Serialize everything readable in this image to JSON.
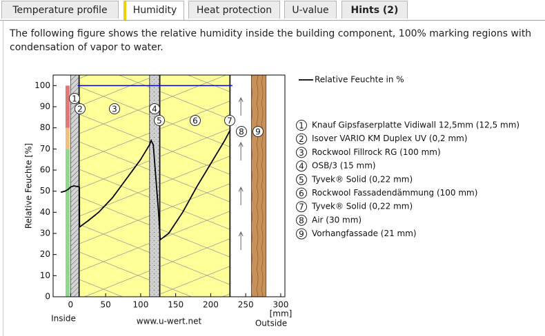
{
  "tabs": [
    {
      "label": "Temperature profile",
      "active": false,
      "bold": false
    },
    {
      "label": "Humidity",
      "active": true,
      "bold": false
    },
    {
      "label": "Heat protection",
      "active": false,
      "bold": false
    },
    {
      "label": "U-value",
      "active": false,
      "bold": false
    },
    {
      "label": "Hints (2)",
      "active": false,
      "bold": true
    }
  ],
  "description": "The following figure shows the relative humidity inside the building component, 100% marking regions with condensation of vapor to water.",
  "chart_data": {
    "type": "line",
    "y_label": "Relative Feuchte [%]",
    "x_unit": "[mm]",
    "inside_label": "Inside",
    "outside_label": "Outside",
    "source": "www.u-wert.net",
    "xlim": [
      -25,
      306
    ],
    "ylim": [
      0,
      105
    ],
    "xticks": [
      0,
      50,
      100,
      150,
      200,
      250,
      300
    ],
    "yticks": [
      0,
      10,
      20,
      30,
      40,
      50,
      60,
      70,
      80,
      90,
      100
    ],
    "series": [
      {
        "name": "Relative Feuchte in %",
        "color": "#000000",
        "x": [
          -14,
          -8,
          -3,
          0,
          5,
          12.5,
          12.7,
          25,
          40,
          60,
          80,
          100,
          112.7,
          115,
          118,
          122,
          126,
          127.9,
          140,
          160,
          180,
          200,
          220,
          227.9
        ],
        "values": [
          49.5,
          50,
          51,
          52,
          52.5,
          52,
          33,
          36,
          40,
          47,
          56,
          65,
          72,
          74,
          72,
          55,
          38,
          27,
          30,
          40,
          52,
          63,
          74,
          79
        ]
      }
    ],
    "saturation_line": {
      "value": 100,
      "x": [
        10,
        231
      ],
      "color": "#0000cc"
    },
    "humidity_bands": [
      {
        "from": 0,
        "to": 70,
        "color": "#8fd68f"
      },
      {
        "from": 70,
        "to": 80,
        "color": "#f0c080"
      },
      {
        "from": 80,
        "to": 100,
        "color": "#e07878"
      }
    ],
    "layers": [
      {
        "number": 1,
        "label": "Knauf Gipsfaserplatte Vidiwall 12,5mm (12,5 mm)",
        "from": 0,
        "to": 12.5,
        "color": "#d4d4d4"
      },
      {
        "number": 2,
        "label": "Isover VARIO KM Duplex UV (0,2 mm)",
        "from": 12.5,
        "to": 12.7,
        "color": "#000000"
      },
      {
        "number": 3,
        "label": "Rockwool Fillrock RG (100 mm)",
        "from": 12.7,
        "to": 112.7,
        "color": "#ffff99"
      },
      {
        "number": 4,
        "label": "OSB/3 (15 mm)",
        "from": 112.7,
        "to": 127.7,
        "color": "#d0d0d0"
      },
      {
        "number": 5,
        "label": "Tyvek® Solid (0,22 mm)",
        "from": 127.7,
        "to": 127.9,
        "color": "#000000"
      },
      {
        "number": 6,
        "label": "Rockwool Fassadendämmung (100 mm)",
        "from": 127.9,
        "to": 227.9,
        "color": "#ffff99"
      },
      {
        "number": 7,
        "label": "Tyvek® Solid (0,22 mm)",
        "from": 227.9,
        "to": 228.1,
        "color": "#000000"
      },
      {
        "number": 8,
        "label": "Air (30 mm)",
        "from": 228.1,
        "to": 258.1,
        "color": "#ffffff"
      },
      {
        "number": 9,
        "label": "Vorhangfassade (21 mm)",
        "from": 258.1,
        "to": 279.1,
        "color": "#c8915a"
      }
    ]
  }
}
